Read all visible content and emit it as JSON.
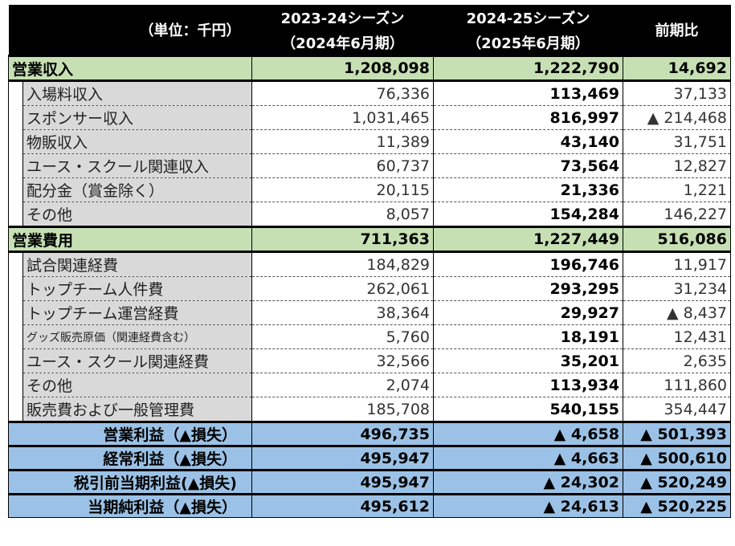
{
  "header": {
    "unit": "（単位：千円）",
    "col1_line1": "2023-24シーズン",
    "col1_line2": "（2024年6月期）",
    "col2_line1": "2024-25シーズン",
    "col2_line2": "（2025年6月期）",
    "col3": "前期比"
  },
  "revenue": {
    "label": "営業収入",
    "prev": "1,208,098",
    "curr": "1,222,790",
    "diff": "14,692",
    "rows": [
      {
        "label": "入場料収入",
        "prev": "76,336",
        "curr": "113,469",
        "diff": "37,133"
      },
      {
        "label": "スポンサー収入",
        "prev": "1,031,465",
        "curr": "816,997",
        "diff": "▲ 214,468"
      },
      {
        "label": "物販収入",
        "prev": "11,389",
        "curr": "43,140",
        "diff": "31,751"
      },
      {
        "label": "ユース・スクール関連収入",
        "prev": "60,737",
        "curr": "73,564",
        "diff": "12,827"
      },
      {
        "label": "配分金（賞金除く）",
        "prev": "20,115",
        "curr": "21,336",
        "diff": "1,221"
      },
      {
        "label": "その他",
        "prev": "8,057",
        "curr": "154,284",
        "diff": "146,227"
      }
    ]
  },
  "expenses": {
    "label": "営業費用",
    "prev": "711,363",
    "curr": "1,227,449",
    "diff": "516,086",
    "rows": [
      {
        "label": "試合関連経費",
        "prev": "184,829",
        "curr": "196,746",
        "diff": "11,917"
      },
      {
        "label": "トップチーム人件費",
        "prev": "262,061",
        "curr": "293,295",
        "diff": "31,234"
      },
      {
        "label": "トップチーム運営経費",
        "prev": "38,364",
        "curr": "29,927",
        "diff": "▲ 8,437"
      },
      {
        "label": "グッズ販売原価（関連経費含む）",
        "prev": "5,760",
        "curr": "18,191",
        "diff": "12,431"
      },
      {
        "label": "ユース・スクール関連経費",
        "prev": "32,566",
        "curr": "35,201",
        "diff": "2,635"
      },
      {
        "label": "その他",
        "prev": "2,074",
        "curr": "113,934",
        "diff": "111,860"
      },
      {
        "label": "販売費および一般管理費",
        "prev": "185,708",
        "curr": "540,155",
        "diff": "354,447"
      }
    ]
  },
  "profits": [
    {
      "label": "営業利益（▲損失）",
      "prev": "496,735",
      "curr": "▲ 4,658",
      "diff": "▲ 501,393"
    },
    {
      "label": "経常利益（▲損失）",
      "prev": "495,947",
      "curr": "▲ 4,663",
      "diff": "▲ 500,610"
    },
    {
      "label": "税引前当期利益(▲損失)",
      "prev": "495,947",
      "curr": "▲ 24,302",
      "diff": "▲ 520,249"
    },
    {
      "label": "当期純利益（▲損失）",
      "prev": "495,612",
      "curr": "▲ 24,613",
      "diff": "▲ 520,225"
    }
  ],
  "colors": {
    "header_bg": "#000000",
    "section_bg": "#c6e0b4",
    "detail_label_bg": "#d9d9d9",
    "profit_bg": "#9bc2e6"
  }
}
